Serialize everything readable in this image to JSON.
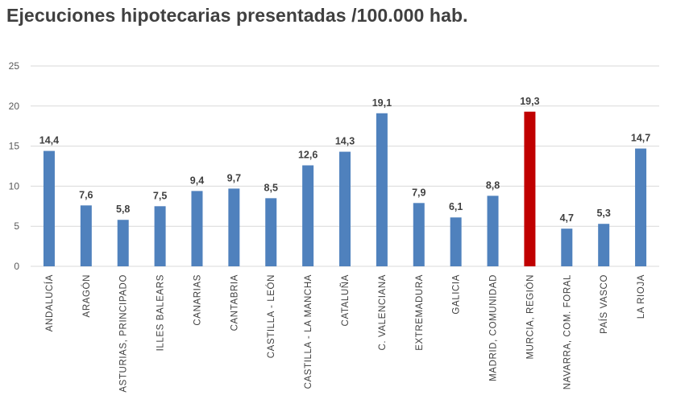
{
  "chart_data": {
    "type": "bar",
    "title": "Ejecuciones hipotecarias presentadas /100.000 hab.",
    "categories": [
      "ANDALUCÍA",
      "ARAGÓN",
      "ASTURIAS, PRINCIPADO",
      "ILLES BALEARS",
      "CANARIAS",
      "CANTABRIA",
      "CASTILLA - LEÓN",
      "CASTILLA - LA MANCHA",
      "CATALUÑA",
      "C. VALENCIANA",
      "EXTREMADURA",
      "GALICIA",
      "MADRID, COMUNIDAD",
      "MURCIA, REGIÓN",
      "NAVARRA, COM. FORAL",
      "PAÍS VASCO",
      "LA RIOJA"
    ],
    "values": [
      14.4,
      7.6,
      5.8,
      7.5,
      9.4,
      9.7,
      8.5,
      12.6,
      14.3,
      19.1,
      7.9,
      6.1,
      8.8,
      19.3,
      4.7,
      5.3,
      14.7
    ],
    "value_labels": [
      "14,4",
      "7,6",
      "5,8",
      "7,5",
      "9,4",
      "9,7",
      "8,5",
      "12,6",
      "14,3",
      "19,1",
      "7,9",
      "6,1",
      "8,8",
      "19,3",
      "4,7",
      "5,3",
      "14,7"
    ],
    "highlight": "MURCIA, REGIÓN",
    "ylim": [
      0,
      25
    ],
    "yticks": [
      0,
      5,
      10,
      15,
      20,
      25
    ],
    "xlabel": "",
    "ylabel": "",
    "grid": true,
    "bar_color": "#4f81bd",
    "highlight_color": "#c00000"
  }
}
